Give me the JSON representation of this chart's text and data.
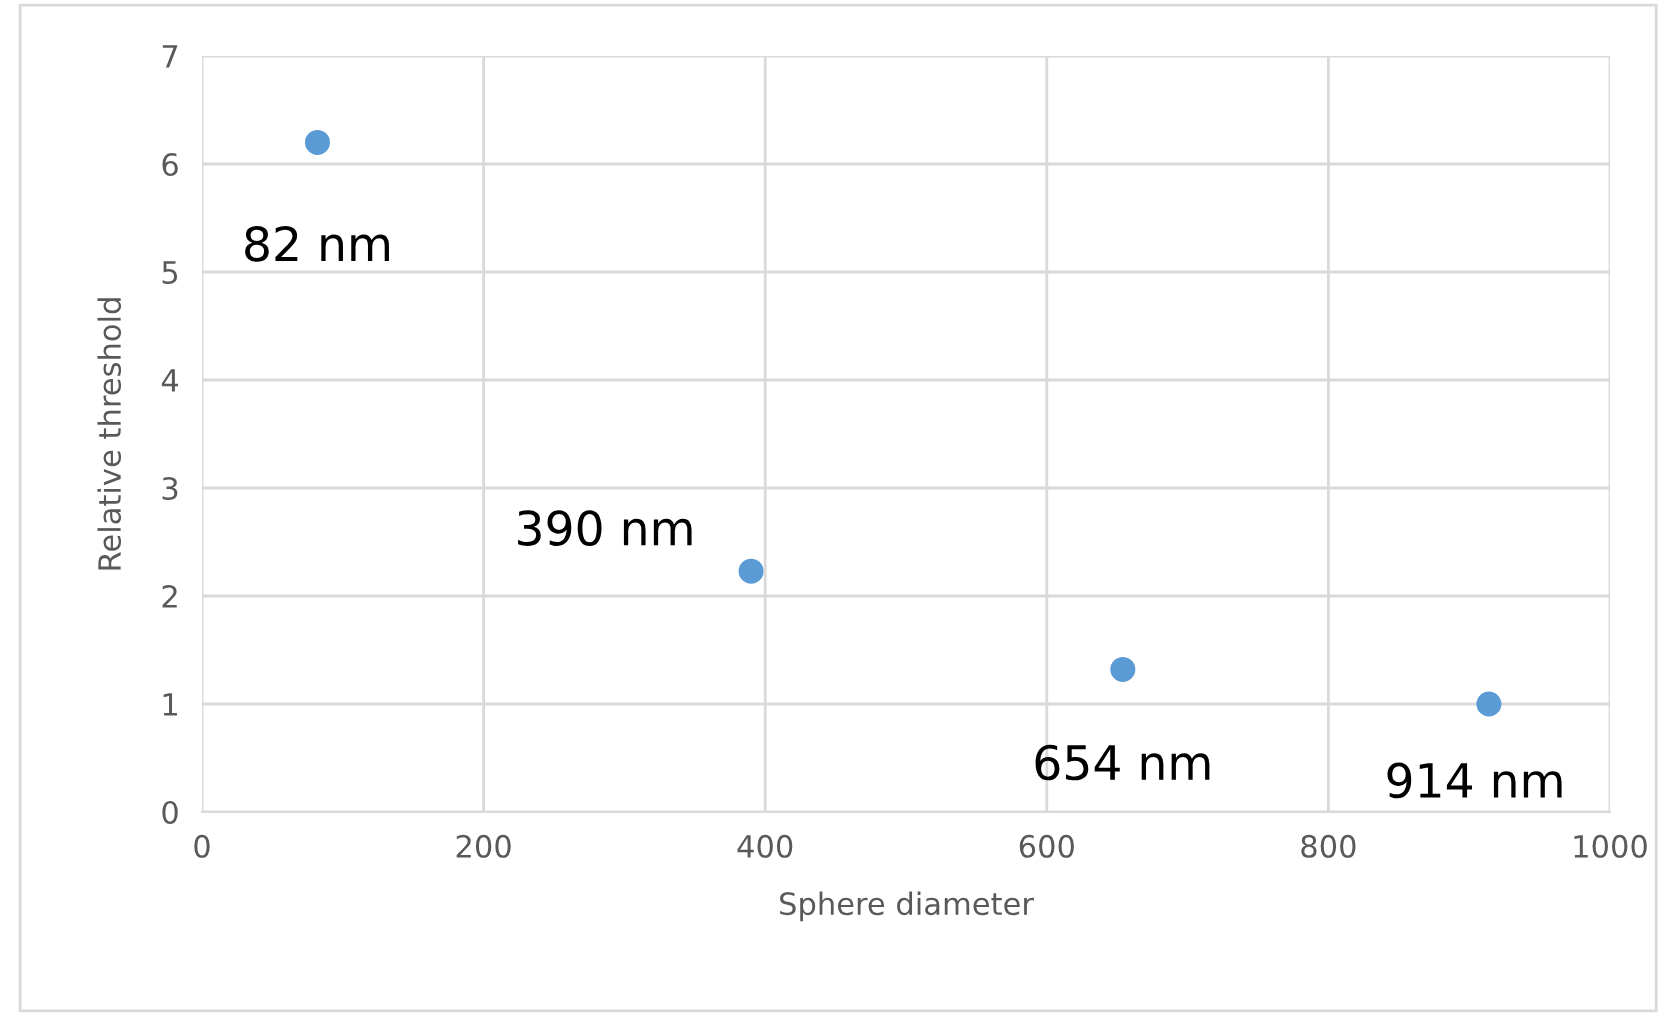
{
  "chart_data": {
    "type": "scatter",
    "xlabel": "Sphere diameter",
    "ylabel": "Relative threshold",
    "x": [
      82,
      390,
      654,
      914
    ],
    "series": [
      {
        "color": "#5b9bd5",
        "values": [
          6.2,
          2.23,
          1.32,
          1.0
        ]
      }
    ],
    "xlim": [
      0,
      1000
    ],
    "xticks": [
      0,
      200,
      400,
      600,
      800,
      1000
    ],
    "ylim": [
      0,
      7
    ],
    "yticks": [
      0,
      1,
      2,
      3,
      4,
      5,
      6,
      7
    ],
    "grid": true,
    "marker": "circle",
    "annotations": [
      {
        "text": "82 nm",
        "x": 82,
        "y": 6.2
      },
      {
        "text": "390 nm",
        "x": 390,
        "y": 2.23
      },
      {
        "text": "654 nm",
        "x": 654,
        "y": 1.32
      },
      {
        "text": "914 nm",
        "x": 914,
        "y": 1.0
      }
    ]
  }
}
